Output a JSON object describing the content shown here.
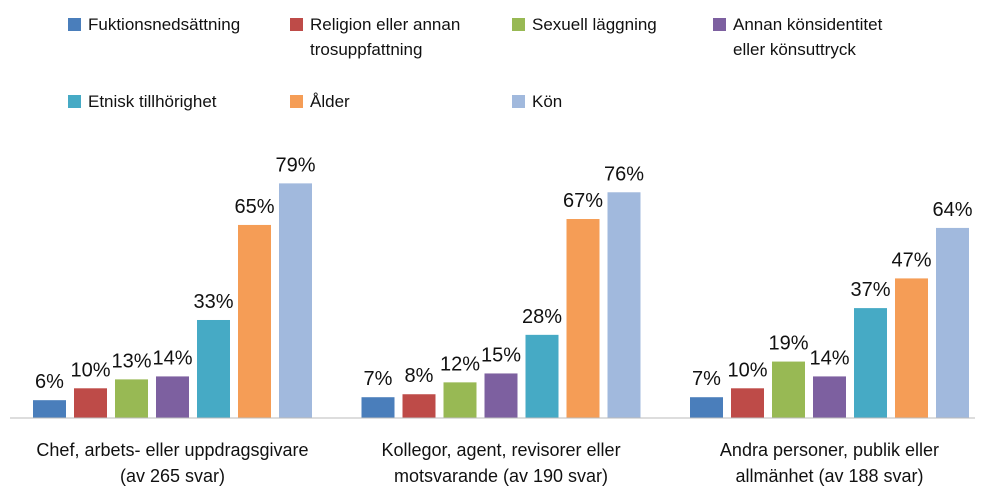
{
  "chart_data": {
    "type": "bar",
    "categories": [
      "Chef, arbets- eller uppdragsgivare\n(av 265 svar)",
      "Kollegor, agent, revisorer eller\nmotsvarande (av 190 svar)",
      "Andra personer, publik eller\nallmänhet (av 188 svar)"
    ],
    "series": [
      {
        "name": "Fuktionsnedsättning",
        "color": "#4a7ebb",
        "values": [
          6,
          7,
          7
        ],
        "value_labels": [
          "6%",
          "7%",
          "7%"
        ]
      },
      {
        "name": "Religion eller annan trosuppfattning",
        "color": "#be4b48",
        "values": [
          10,
          8,
          10
        ],
        "value_labels": [
          "10%",
          "8%",
          "10%"
        ]
      },
      {
        "name": "Sexuell läggning",
        "color": "#98b954",
        "values": [
          13,
          12,
          19
        ],
        "value_labels": [
          "13%",
          "12%",
          "19%"
        ]
      },
      {
        "name": "Annan könsidentitet eller könsuttryck",
        "color": "#7d60a0",
        "values": [
          14,
          15,
          14
        ],
        "value_labels": [
          "14%",
          "15%",
          "14%"
        ]
      },
      {
        "name": "Etnisk tillhörighet",
        "color": "#46aac5",
        "values": [
          33,
          28,
          37
        ],
        "value_labels": [
          "33%",
          "28%",
          "37%"
        ]
      },
      {
        "name": "Ålder",
        "color": "#f59d56",
        "values": [
          65,
          67,
          47
        ],
        "value_labels": [
          "65%",
          "67%",
          "47%"
        ]
      },
      {
        "name": "Kön",
        "color": "#a1b9dd",
        "values": [
          79,
          76,
          64
        ],
        "value_labels": [
          "79%",
          "76%",
          "64%"
        ]
      }
    ]
  }
}
